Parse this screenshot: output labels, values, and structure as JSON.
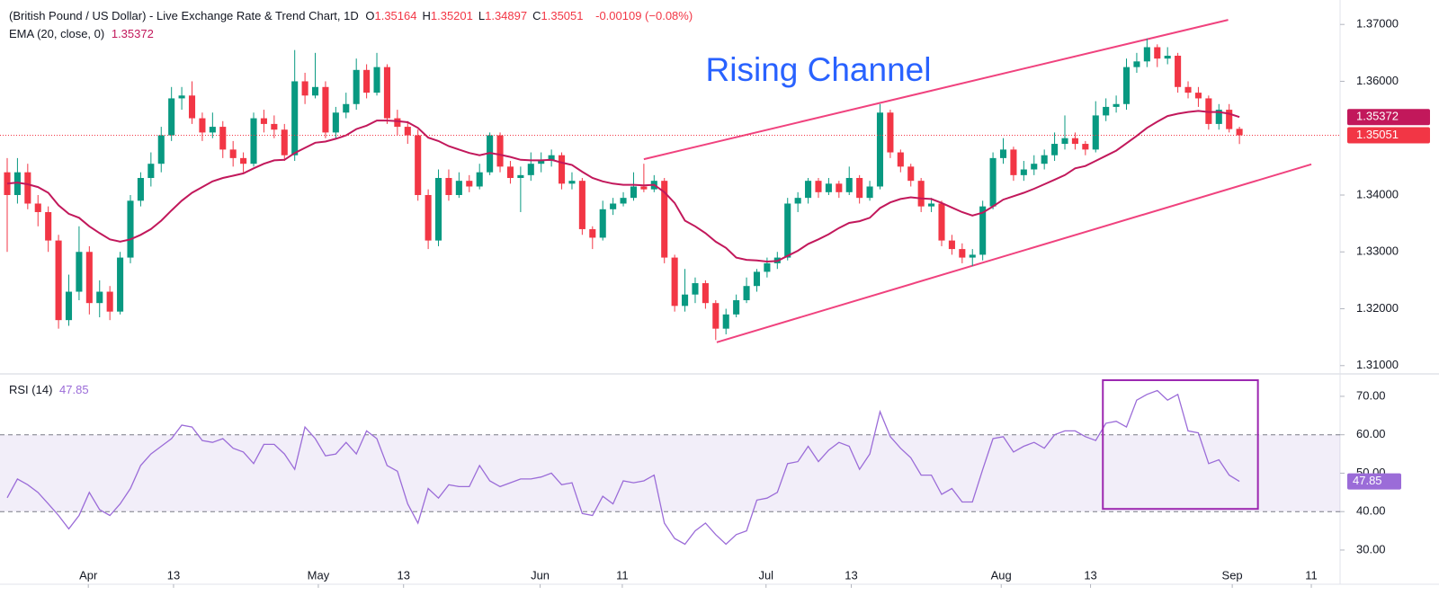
{
  "chart_data": [
    {
      "type": "candlestick",
      "title": "(British Pound / US Dollar) - Live Exchange Rate & Trend Chart, 1D",
      "quote": [
        {
          "label": "O",
          "value": "1.35164"
        },
        {
          "label": "H",
          "value": "1.35201"
        },
        {
          "label": "L",
          "value": "1.34897"
        },
        {
          "label": "C",
          "value": "1.35051"
        }
      ],
      "change": "-0.00109 (−0.08%)",
      "colors": {
        "up": "#089981",
        "down": "#f23645"
      },
      "candles": [
        [
          1.344,
          1.3465,
          1.33,
          1.34
        ],
        [
          1.34,
          1.3465,
          1.3385,
          1.344
        ],
        [
          1.344,
          1.3455,
          1.3375,
          1.3385
        ],
        [
          1.3385,
          1.34,
          1.3345,
          1.337
        ],
        [
          1.337,
          1.338,
          1.33,
          1.332
        ],
        [
          1.332,
          1.333,
          1.3165,
          1.318
        ],
        [
          1.318,
          1.326,
          1.317,
          1.323
        ],
        [
          1.323,
          1.3345,
          1.3215,
          1.33
        ],
        [
          1.33,
          1.331,
          1.319,
          1.321
        ],
        [
          1.321,
          1.325,
          1.3185,
          1.323
        ],
        [
          1.323,
          1.324,
          1.318,
          1.3195
        ],
        [
          1.3195,
          1.33,
          1.319,
          1.329
        ],
        [
          1.329,
          1.34,
          1.328,
          1.339
        ],
        [
          1.339,
          1.344,
          1.338,
          1.343
        ],
        [
          1.343,
          1.3475,
          1.3415,
          1.3455
        ],
        [
          1.3455,
          1.352,
          1.344,
          1.3505
        ],
        [
          1.3505,
          1.359,
          1.3495,
          1.357
        ],
        [
          1.357,
          1.359,
          1.355,
          1.3575
        ],
        [
          1.3575,
          1.36,
          1.3525,
          1.3535
        ],
        [
          1.3535,
          1.3545,
          1.3495,
          1.351
        ],
        [
          1.351,
          1.3545,
          1.35,
          1.352
        ],
        [
          1.352,
          1.353,
          1.3465,
          1.348
        ],
        [
          1.348,
          1.3495,
          1.345,
          1.3465
        ],
        [
          1.3465,
          1.3475,
          1.344,
          1.3455
        ],
        [
          1.3455,
          1.3545,
          1.345,
          1.3535
        ],
        [
          1.3535,
          1.355,
          1.351,
          1.3525
        ],
        [
          1.3525,
          1.354,
          1.35,
          1.3515
        ],
        [
          1.3515,
          1.3525,
          1.346,
          1.347
        ],
        [
          1.347,
          1.3655,
          1.346,
          1.36
        ],
        [
          1.36,
          1.3615,
          1.356,
          1.3575
        ],
        [
          1.3575,
          1.365,
          1.357,
          1.359
        ],
        [
          1.359,
          1.36,
          1.35,
          1.351
        ],
        [
          1.351,
          1.3555,
          1.35,
          1.3545
        ],
        [
          1.3545,
          1.358,
          1.3535,
          1.356
        ],
        [
          1.356,
          1.364,
          1.355,
          1.362
        ],
        [
          1.362,
          1.363,
          1.357,
          1.358
        ],
        [
          1.358,
          1.365,
          1.3575,
          1.3625
        ],
        [
          1.3625,
          1.363,
          1.3525,
          1.3535
        ],
        [
          1.3535,
          1.355,
          1.3505,
          1.352
        ],
        [
          1.352,
          1.353,
          1.349,
          1.3505
        ],
        [
          1.3505,
          1.3515,
          1.339,
          1.34
        ],
        [
          1.34,
          1.341,
          1.3305,
          1.332
        ],
        [
          1.332,
          1.3445,
          1.331,
          1.343
        ],
        [
          1.343,
          1.3445,
          1.339,
          1.34
        ],
        [
          1.34,
          1.344,
          1.3395,
          1.3425
        ],
        [
          1.3425,
          1.3435,
          1.3405,
          1.3415
        ],
        [
          1.3415,
          1.3455,
          1.341,
          1.344
        ],
        [
          1.344,
          1.351,
          1.3435,
          1.3505
        ],
        [
          1.3505,
          1.351,
          1.344,
          1.345
        ],
        [
          1.345,
          1.346,
          1.342,
          1.343
        ],
        [
          1.343,
          1.345,
          1.337,
          1.3435
        ],
        [
          1.3435,
          1.3475,
          1.3425,
          1.3455
        ],
        [
          1.3455,
          1.3475,
          1.344,
          1.346
        ],
        [
          1.346,
          1.348,
          1.345,
          1.347
        ],
        [
          1.347,
          1.3475,
          1.341,
          1.342
        ],
        [
          1.342,
          1.344,
          1.341,
          1.3425
        ],
        [
          1.3425,
          1.343,
          1.333,
          1.334
        ],
        [
          1.334,
          1.3345,
          1.3305,
          1.3325
        ],
        [
          1.3325,
          1.339,
          1.332,
          1.3375
        ],
        [
          1.3375,
          1.3395,
          1.3365,
          1.3385
        ],
        [
          1.3385,
          1.3405,
          1.338,
          1.3395
        ],
        [
          1.3395,
          1.344,
          1.339,
          1.3415
        ],
        [
          1.3415,
          1.3455,
          1.3405,
          1.341
        ],
        [
          1.341,
          1.3435,
          1.3405,
          1.3425
        ],
        [
          1.3425,
          1.343,
          1.328,
          1.329
        ],
        [
          1.329,
          1.3295,
          1.3195,
          1.3205
        ],
        [
          1.3205,
          1.327,
          1.3195,
          1.3225
        ],
        [
          1.3225,
          1.3255,
          1.321,
          1.3245
        ],
        [
          1.3245,
          1.325,
          1.32,
          1.321
        ],
        [
          1.321,
          1.3215,
          1.3145,
          1.3165
        ],
        [
          1.3165,
          1.32,
          1.3155,
          1.319
        ],
        [
          1.319,
          1.3225,
          1.3185,
          1.3215
        ],
        [
          1.3215,
          1.3255,
          1.321,
          1.324
        ],
        [
          1.324,
          1.327,
          1.323,
          1.3265
        ],
        [
          1.3265,
          1.329,
          1.3255,
          1.328
        ],
        [
          1.328,
          1.33,
          1.327,
          1.329
        ],
        [
          1.329,
          1.3395,
          1.3285,
          1.3385
        ],
        [
          1.3385,
          1.3405,
          1.337,
          1.3395
        ],
        [
          1.3395,
          1.343,
          1.3385,
          1.3425
        ],
        [
          1.3425,
          1.343,
          1.3395,
          1.3405
        ],
        [
          1.3405,
          1.343,
          1.34,
          1.342
        ],
        [
          1.342,
          1.3425,
          1.3395,
          1.3405
        ],
        [
          1.3405,
          1.345,
          1.34,
          1.343
        ],
        [
          1.343,
          1.3435,
          1.3385,
          1.3395
        ],
        [
          1.3395,
          1.3425,
          1.339,
          1.3415
        ],
        [
          1.3415,
          1.356,
          1.341,
          1.3545
        ],
        [
          1.3545,
          1.355,
          1.3465,
          1.3475
        ],
        [
          1.3475,
          1.348,
          1.344,
          1.345
        ],
        [
          1.345,
          1.3455,
          1.3415,
          1.3425
        ],
        [
          1.3425,
          1.343,
          1.337,
          1.338
        ],
        [
          1.338,
          1.3395,
          1.337,
          1.3385
        ],
        [
          1.3385,
          1.339,
          1.331,
          1.332
        ],
        [
          1.332,
          1.333,
          1.3295,
          1.3305
        ],
        [
          1.3305,
          1.3315,
          1.328,
          1.329
        ],
        [
          1.329,
          1.3305,
          1.3275,
          1.3295
        ],
        [
          1.3295,
          1.339,
          1.3285,
          1.338
        ],
        [
          1.338,
          1.3475,
          1.3375,
          1.3465
        ],
        [
          1.3465,
          1.35,
          1.3455,
          1.348
        ],
        [
          1.348,
          1.3485,
          1.3425,
          1.3435
        ],
        [
          1.3435,
          1.346,
          1.3425,
          1.3445
        ],
        [
          1.3445,
          1.347,
          1.3435,
          1.3455
        ],
        [
          1.3455,
          1.348,
          1.3445,
          1.347
        ],
        [
          1.347,
          1.351,
          1.346,
          1.349
        ],
        [
          1.349,
          1.354,
          1.348,
          1.35
        ],
        [
          1.35,
          1.351,
          1.348,
          1.349
        ],
        [
          1.349,
          1.3495,
          1.347,
          1.348
        ],
        [
          1.348,
          1.3565,
          1.3475,
          1.354
        ],
        [
          1.354,
          1.357,
          1.353,
          1.3555
        ],
        [
          1.3555,
          1.3575,
          1.3545,
          1.356
        ],
        [
          1.356,
          1.364,
          1.355,
          1.3625
        ],
        [
          1.3625,
          1.365,
          1.3615,
          1.3635
        ],
        [
          1.3635,
          1.3675,
          1.3625,
          1.366
        ],
        [
          1.366,
          1.3665,
          1.3625,
          1.364
        ],
        [
          1.364,
          1.366,
          1.363,
          1.3645
        ],
        [
          1.3645,
          1.365,
          1.358,
          1.359
        ],
        [
          1.359,
          1.36,
          1.357,
          1.358
        ],
        [
          1.358,
          1.359,
          1.3555,
          1.357
        ],
        [
          1.357,
          1.3575,
          1.3515,
          1.3525
        ],
        [
          1.3525,
          1.356,
          1.3515,
          1.355
        ],
        [
          1.355,
          1.356,
          1.351,
          1.3516
        ],
        [
          1.35164,
          1.35201,
          1.34897,
          1.35051
        ]
      ],
      "last_label": "1.35051",
      "ema": {
        "name": "EMA (20, close, 0)",
        "color": "#c2185b",
        "last_label": "1.35372",
        "values": [
          1.342,
          1.3422,
          1.3419,
          1.3414,
          1.3404,
          1.3382,
          1.3367,
          1.336,
          1.3345,
          1.3333,
          1.3322,
          1.3318,
          1.3322,
          1.333,
          1.334,
          1.3355,
          1.3373,
          1.339,
          1.3404,
          1.3414,
          1.3424,
          1.343,
          1.3434,
          1.3438,
          1.3447,
          1.3455,
          1.3461,
          1.3462,
          1.3474,
          1.3483,
          1.3492,
          1.3494,
          1.3499,
          1.3505,
          1.3516,
          1.3522,
          1.3531,
          1.3531,
          1.353,
          1.3528,
          1.3518,
          1.3501,
          1.3495,
          1.3486,
          1.348,
          1.3474,
          1.347,
          1.3474,
          1.3471,
          1.3467,
          1.3462,
          1.3461,
          1.3461,
          1.3462,
          1.3457,
          1.3453,
          1.3441,
          1.343,
          1.3424,
          1.342,
          1.3418,
          1.3418,
          1.3417,
          1.3418,
          1.3405,
          1.3386,
          1.3355,
          1.3345,
          1.3333,
          1.3318,
          1.3307,
          1.329,
          1.3286,
          1.3285,
          1.3283,
          1.3284,
          1.3293,
          1.3302,
          1.3314,
          1.3322,
          1.3331,
          1.3342,
          1.3351,
          1.3354,
          1.336,
          1.3377,
          1.3387,
          1.3393,
          1.3396,
          1.3394,
          1.3393,
          1.3386,
          1.3378,
          1.337,
          1.3364,
          1.3369,
          1.338,
          1.3392,
          1.3398,
          1.3404,
          1.3411,
          1.3419,
          1.3427,
          1.3435,
          1.3447,
          1.3451,
          1.346,
          1.3469,
          1.3478,
          1.3491,
          1.3504,
          1.3518,
          1.3529,
          1.3539,
          1.3543,
          1.3546,
          1.3548,
          1.3546,
          1.3546,
          1.3543,
          1.35372
        ]
      },
      "trendlines": {
        "color": "#f0427e",
        "lines": [
          {
            "x": [
              62.0,
              118.9
            ],
            "y": [
              1.3463,
              1.3708
            ]
          },
          {
            "x": [
              69.1,
              127.0
            ],
            "y": [
              1.3141,
              1.3454
            ]
          }
        ]
      },
      "annotation": {
        "text": "Rising Channel",
        "color": "#2962ff"
      },
      "xlim": [
        -0.7,
        129.8
      ],
      "ylim": [
        1.3087,
        1.3743
      ],
      "yticks": [
        {
          "value": 1.31,
          "label": "1.31000"
        },
        {
          "value": 1.32,
          "label": "1.32000"
        },
        {
          "value": 1.33,
          "label": "1.33000"
        },
        {
          "value": 1.34,
          "label": "1.34000"
        },
        {
          "value": 1.36,
          "label": "1.36000"
        },
        {
          "value": 1.37,
          "label": "1.37000"
        }
      ],
      "xticks": [
        {
          "value": 7.9,
          "label": "Apr"
        },
        {
          "value": 16.2,
          "label": "13"
        },
        {
          "value": 30.3,
          "label": "May"
        },
        {
          "value": 38.6,
          "label": "13"
        },
        {
          "value": 51.9,
          "label": "Jun"
        },
        {
          "value": 59.9,
          "label": "11"
        },
        {
          "value": 73.9,
          "label": "Jul"
        },
        {
          "value": 82.2,
          "label": "13"
        },
        {
          "value": 96.8,
          "label": "Aug"
        },
        {
          "value": 105.5,
          "label": "13"
        },
        {
          "value": 119.3,
          "label": "Sep"
        },
        {
          "value": 127.0,
          "label": "11"
        }
      ]
    },
    {
      "type": "line",
      "name": "RSI (14)",
      "last_label": "47.85",
      "color": "#9b6cd8",
      "values": [
        43.6,
        48.5,
        47,
        45,
        42,
        39,
        35.5,
        39,
        45,
        40.5,
        39,
        42,
        46,
        52,
        55,
        57,
        59,
        62.5,
        62,
        58.5,
        58,
        59,
        56.5,
        55.5,
        52.5,
        57.5,
        57.5,
        55,
        51,
        62,
        59,
        54.5,
        55,
        58,
        55,
        61,
        59,
        52,
        50.5,
        42,
        37,
        46,
        43.5,
        47,
        46.5,
        46.5,
        52,
        48,
        46.5,
        47.5,
        48.5,
        48.5,
        49,
        50,
        47,
        47.5,
        39.5,
        39,
        44,
        42,
        48,
        47.5,
        48,
        49.5,
        37,
        33,
        31.5,
        35,
        37,
        34,
        31.5,
        34,
        35,
        43,
        43.5,
        45,
        52.5,
        53,
        57,
        53,
        56,
        58,
        57,
        51,
        55,
        66,
        59.5,
        56.5,
        54,
        49.5,
        49.5,
        44.5,
        46,
        42.5,
        42.5,
        51,
        59,
        59.5,
        55.5,
        57,
        58,
        56.5,
        60,
        61,
        61,
        59.5,
        58.5,
        63,
        63.5,
        62,
        69,
        70.5,
        71.5,
        69,
        70.5,
        61,
        60.5,
        52.5,
        53.5,
        49.5,
        47.85
      ],
      "band": [
        40,
        60
      ],
      "box": {
        "x": [
          106.7,
          121.8
        ],
        "y": [
          40.7,
          74.2
        ],
        "color": "#9c27b0"
      },
      "ylim": [
        21.1,
        75.6
      ],
      "yticks": [
        {
          "value": 30,
          "label": "30.00"
        },
        {
          "value": 40,
          "label": "40.00"
        },
        {
          "value": 50,
          "label": "50.00"
        },
        {
          "value": 60,
          "label": "60.00"
        },
        {
          "value": 70,
          "label": "70.00"
        }
      ]
    }
  ]
}
